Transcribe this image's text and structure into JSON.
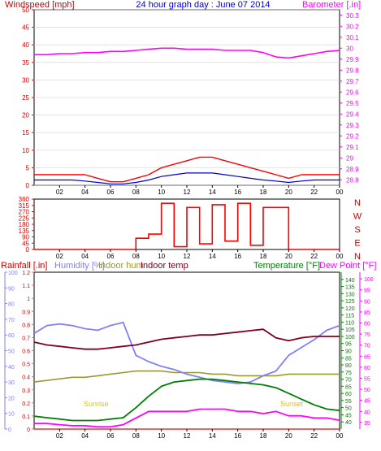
{
  "title": "24 hour graph day : June 07 2014",
  "colors": {
    "frame": "#000000",
    "wind_grid": "#d0d0d0",
    "wind_avg": "#0000cc",
    "wind_gust": "#ff0000",
    "barometer": "#ff00ff",
    "direction": "#ff0000",
    "title": "#0000cc",
    "rain_axis": "#ff6060",
    "humidity": "#8080ff",
    "indoor_hum": "#999933",
    "indoor_temp": "#800020",
    "temperature": "#008000",
    "dew_point": "#ff00ff",
    "sunrise_label": "#ffd700"
  },
  "chart_data": [
    {
      "type": "line",
      "panel": "wind_barometer",
      "title": "24 hour graph day : June 07 2014",
      "x_ticks": [
        "02",
        "04",
        "06",
        "08",
        "10",
        "12",
        "14",
        "16",
        "18",
        "20",
        "22",
        "00"
      ],
      "left_axis": {
        "label": "Windspeed [mph]",
        "range": [
          0,
          50
        ],
        "ticks": [
          "0",
          "5",
          "10",
          "15",
          "20",
          "25",
          "30",
          "35",
          "40",
          "45",
          "50"
        ]
      },
      "right_axis": {
        "label": "Barometer [.in]",
        "range": [
          28.75,
          30.35
        ],
        "ticks": [
          "28.8",
          "28.9",
          "29",
          "29.1",
          "29.2",
          "29.3",
          "29.4",
          "29.5",
          "29.6",
          "29.7",
          "29.8",
          "29.9",
          "30",
          "30.1",
          "30.2",
          "30.3"
        ]
      },
      "series": [
        {
          "key": "gust",
          "axis": "left",
          "x": [
            0,
            1,
            2,
            3,
            4,
            5,
            6,
            7,
            8,
            9,
            10,
            11,
            12,
            13,
            14,
            15,
            16,
            17,
            18,
            19,
            20,
            21,
            22,
            23,
            24
          ],
          "values": [
            3,
            3,
            3,
            3,
            3,
            2,
            1,
            1,
            2,
            3,
            5,
            6,
            7,
            8,
            8,
            7,
            6,
            5,
            4,
            3,
            2,
            3,
            3,
            3,
            3
          ]
        },
        {
          "key": "average",
          "axis": "left",
          "x": [
            0,
            1,
            2,
            3,
            4,
            5,
            6,
            7,
            8,
            9,
            10,
            11,
            12,
            13,
            14,
            15,
            16,
            17,
            18,
            19,
            20,
            21,
            22,
            23,
            24
          ],
          "values": [
            1.5,
            1.5,
            1.5,
            1.5,
            1.2,
            0.8,
            0.4,
            0.4,
            0.8,
            1.5,
            2.5,
            3,
            3.5,
            3.5,
            3.5,
            3,
            2.5,
            2,
            1.5,
            1.2,
            0.8,
            1.2,
            1.5,
            1.5,
            1.5
          ]
        },
        {
          "key": "barometer",
          "axis": "right",
          "x": [
            0,
            1,
            2,
            3,
            4,
            5,
            6,
            7,
            8,
            9,
            10,
            11,
            12,
            13,
            14,
            15,
            16,
            17,
            18,
            19,
            20,
            21,
            22,
            23,
            24
          ],
          "values": [
            29.94,
            29.94,
            29.95,
            29.95,
            29.96,
            29.96,
            29.97,
            29.97,
            29.98,
            29.99,
            30.0,
            30.0,
            29.99,
            29.99,
            29.99,
            29.98,
            29.98,
            29.98,
            29.96,
            29.92,
            29.91,
            29.93,
            29.95,
            29.97,
            29.98
          ]
        }
      ]
    },
    {
      "type": "line",
      "panel": "wind_direction",
      "x_ticks": [
        "02",
        "04",
        "06",
        "08",
        "10",
        "12",
        "14",
        "16",
        "18",
        "20",
        "22",
        "00"
      ],
      "left_axis": {
        "range": [
          0,
          360
        ],
        "ticks": [
          "0",
          "45",
          "90",
          "135",
          "180",
          "225",
          "270",
          "315",
          "360"
        ]
      },
      "right_labels": [
        "N",
        "W",
        "S",
        "E",
        "N"
      ],
      "series": [
        {
          "key": "direction",
          "x": [
            0,
            1,
            2,
            3,
            4,
            5,
            6,
            7,
            8,
            9,
            10,
            11,
            12,
            13,
            14,
            15,
            16,
            17,
            18,
            19,
            20,
            21,
            22,
            23,
            24
          ],
          "values": [
            0,
            0,
            0,
            0,
            0,
            0,
            0,
            0,
            80,
            110,
            330,
            20,
            300,
            40,
            320,
            60,
            330,
            30,
            300,
            300,
            0,
            0,
            0,
            0,
            0
          ]
        }
      ]
    },
    {
      "type": "line",
      "panel": "rain_humidity_temperature",
      "x_ticks": [
        "02",
        "04",
        "06",
        "08",
        "10",
        "12",
        "14",
        "16",
        "18",
        "20",
        "22",
        "00"
      ],
      "axes": {
        "rainfall": {
          "label": "Rainfall [.in]",
          "range": [
            0,
            1.2
          ],
          "ticks": [
            "0",
            "0.1",
            "0.2",
            "0.3",
            "0.4",
            "0.5",
            "0.6",
            "0.7",
            "0.8",
            "0.9",
            "1",
            "1.1",
            "1.2"
          ]
        },
        "humidity": {
          "label": "Humidity [%]",
          "range": [
            0,
            100
          ],
          "ticks": [
            "0",
            "10",
            "20",
            "30",
            "40",
            "50",
            "60",
            "70",
            "80",
            "90",
            "100"
          ]
        },
        "temperature": {
          "label": "Temperature [°F]",
          "range": [
            35,
            145
          ],
          "ticks": [
            "40",
            "45",
            "50",
            "55",
            "60",
            "65",
            "70",
            "75",
            "80",
            "85",
            "90",
            "95",
            "100",
            "105",
            "110",
            "115",
            "120",
            "125",
            "130",
            "135",
            "140"
          ]
        },
        "dew_point": {
          "label": "Dew Point [°F]",
          "range": [
            32,
            103
          ],
          "ticks": [
            "35",
            "40",
            "45",
            "50",
            "55",
            "60",
            "65",
            "70",
            "75",
            "80",
            "85",
            "90",
            "95",
            "100"
          ]
        }
      },
      "legend": [
        "Rainfall [.in]",
        "Humidity [%]",
        "Indoor hum",
        "Indoor temp",
        "Temperature [°F]",
        "Dew Point [°F]"
      ],
      "annotations": [
        "Sunrise",
        "Sunset"
      ],
      "series": [
        {
          "key": "humidity",
          "axis": "humidity",
          "x": [
            0,
            1,
            2,
            3,
            4,
            5,
            6,
            7,
            8,
            9,
            10,
            11,
            12,
            13,
            14,
            15,
            16,
            17,
            18,
            19,
            20,
            21,
            22,
            23,
            24
          ],
          "values": [
            61,
            66,
            67,
            66,
            64,
            63,
            66,
            68,
            47,
            43,
            40,
            38,
            35,
            33,
            31,
            30,
            29,
            30,
            34,
            37,
            47,
            52,
            57,
            63,
            66
          ]
        },
        {
          "key": "indoor_temp",
          "axis": "temperature",
          "x": [
            0,
            1,
            2,
            3,
            4,
            5,
            6,
            7,
            8,
            9,
            10,
            11,
            12,
            13,
            14,
            15,
            16,
            17,
            18,
            19,
            20,
            21,
            22,
            23,
            24
          ],
          "values": [
            96,
            94,
            93,
            92,
            91,
            91,
            92,
            93,
            94,
            96,
            98,
            99,
            100,
            101,
            101,
            102,
            103,
            104,
            105,
            99,
            97,
            99,
            100,
            100,
            100
          ]
        },
        {
          "key": "temperature",
          "axis": "temperature",
          "x": [
            0,
            1,
            2,
            3,
            4,
            5,
            6,
            7,
            8,
            9,
            10,
            11,
            12,
            13,
            14,
            15,
            16,
            17,
            18,
            19,
            20,
            21,
            22,
            23,
            24
          ],
          "values": [
            44,
            43,
            42,
            41,
            41,
            41,
            42,
            43,
            50,
            58,
            65,
            68,
            69,
            70,
            70,
            69,
            68,
            67,
            66,
            64,
            60,
            56,
            52,
            49,
            48
          ]
        },
        {
          "key": "indoor_hum",
          "axis": "humidity",
          "x": [
            0,
            1,
            2,
            3,
            4,
            5,
            6,
            7,
            8,
            9,
            10,
            11,
            12,
            13,
            14,
            15,
            16,
            17,
            18,
            19,
            20,
            21,
            22,
            23,
            24
          ],
          "values": [
            30,
            31,
            32,
            33,
            33,
            34,
            35,
            36,
            37,
            37,
            37,
            36,
            36,
            36,
            35,
            35,
            34,
            34,
            34,
            34,
            35,
            35,
            35,
            35,
            35
          ]
        },
        {
          "key": "dew_point",
          "axis": "dew_point",
          "x": [
            0,
            1,
            2,
            3,
            4,
            5,
            6,
            7,
            8,
            9,
            10,
            11,
            12,
            13,
            14,
            15,
            16,
            17,
            18,
            19,
            20,
            21,
            22,
            23,
            24
          ],
          "values": [
            34.5,
            34.5,
            34,
            33.5,
            33.5,
            33,
            33,
            34,
            37,
            40,
            40,
            40,
            40,
            41,
            41,
            41,
            40,
            40,
            39,
            40,
            38,
            38,
            37,
            37,
            36
          ]
        },
        {
          "key": "rainfall",
          "axis": "rainfall",
          "x": [
            0,
            24
          ],
          "values": [
            0,
            0
          ]
        }
      ]
    }
  ]
}
